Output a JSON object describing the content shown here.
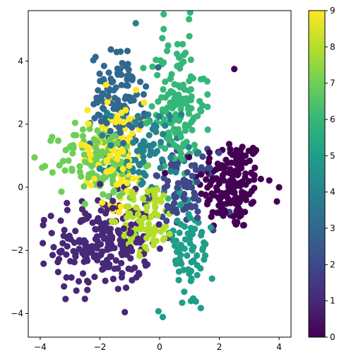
{
  "chart_data": {
    "type": "scatter",
    "title": "",
    "xlabel": "",
    "ylabel": "",
    "xlim": [
      -4.4,
      4.4
    ],
    "ylim": [
      -4.75,
      5.6
    ],
    "x_ticks": [
      "−4",
      "−2",
      "0",
      "2",
      "4"
    ],
    "x_tick_values": [
      -4,
      -2,
      0,
      2,
      4
    ],
    "y_ticks": [
      "−4",
      "−2",
      "0",
      "2",
      "4"
    ],
    "y_tick_values": [
      -4,
      -2,
      0,
      2,
      4
    ],
    "grid": false,
    "colormap": "viridis",
    "colorbar": {
      "range": [
        0,
        9
      ],
      "ticks": [
        "0",
        "1",
        "2",
        "3",
        "4",
        "5",
        "6",
        "7",
        "8",
        "9"
      ],
      "tick_values": [
        0,
        1,
        2,
        3,
        4,
        5,
        6,
        7,
        8,
        9
      ]
    },
    "clusters": [
      {
        "label": 0,
        "color": "#440154",
        "center": [
          2.4,
          0.1
        ],
        "spread": [
          0.55,
          0.75
        ],
        "n": 170
      },
      {
        "label": 1,
        "color": "#482878",
        "center": [
          -1.9,
          -1.8
        ],
        "spread": [
          0.8,
          0.75
        ],
        "n": 220
      },
      {
        "label": 2,
        "color": "#3e4989",
        "center": [
          0.8,
          -0.1
        ],
        "spread": [
          0.55,
          0.6
        ],
        "n": 90
      },
      {
        "label": 3,
        "color": "#31688e",
        "center": [
          -1.4,
          2.8
        ],
        "spread": [
          0.45,
          0.75
        ],
        "n": 110
      },
      {
        "label": 4,
        "color": "#26828e",
        "center": [
          -0.5,
          1.2
        ],
        "spread": [
          0.6,
          0.7
        ],
        "n": 90
      },
      {
        "label": 5,
        "color": "#1f9e89",
        "center": [
          0.9,
          -2.0
        ],
        "spread": [
          0.45,
          1.0
        ],
        "n": 80
      },
      {
        "label": 6,
        "color": "#35b779",
        "center": [
          0.6,
          2.6
        ],
        "spread": [
          0.45,
          1.2
        ],
        "n": 150
      },
      {
        "label": 7,
        "color": "#6ece58",
        "center": [
          -2.0,
          0.8
        ],
        "spread": [
          0.7,
          0.6
        ],
        "n": 140
      },
      {
        "label": 8,
        "color": "#b5de2b",
        "center": [
          -0.4,
          -1.0
        ],
        "spread": [
          0.45,
          0.55
        ],
        "n": 90
      },
      {
        "label": 9,
        "color": "#fde725",
        "center": [
          -1.5,
          1.3
        ],
        "spread": [
          0.5,
          0.9
        ],
        "n": 110
      }
    ],
    "outliers": [
      {
        "x": -0.8,
        "y": 5.2,
        "label": 4
      },
      {
        "x": 2.5,
        "y": 3.75,
        "label": 0
      },
      {
        "x": 4.0,
        "y": 0.0,
        "label": 0
      },
      {
        "x": -3.9,
        "y": -1.2,
        "label": 1
      }
    ]
  }
}
